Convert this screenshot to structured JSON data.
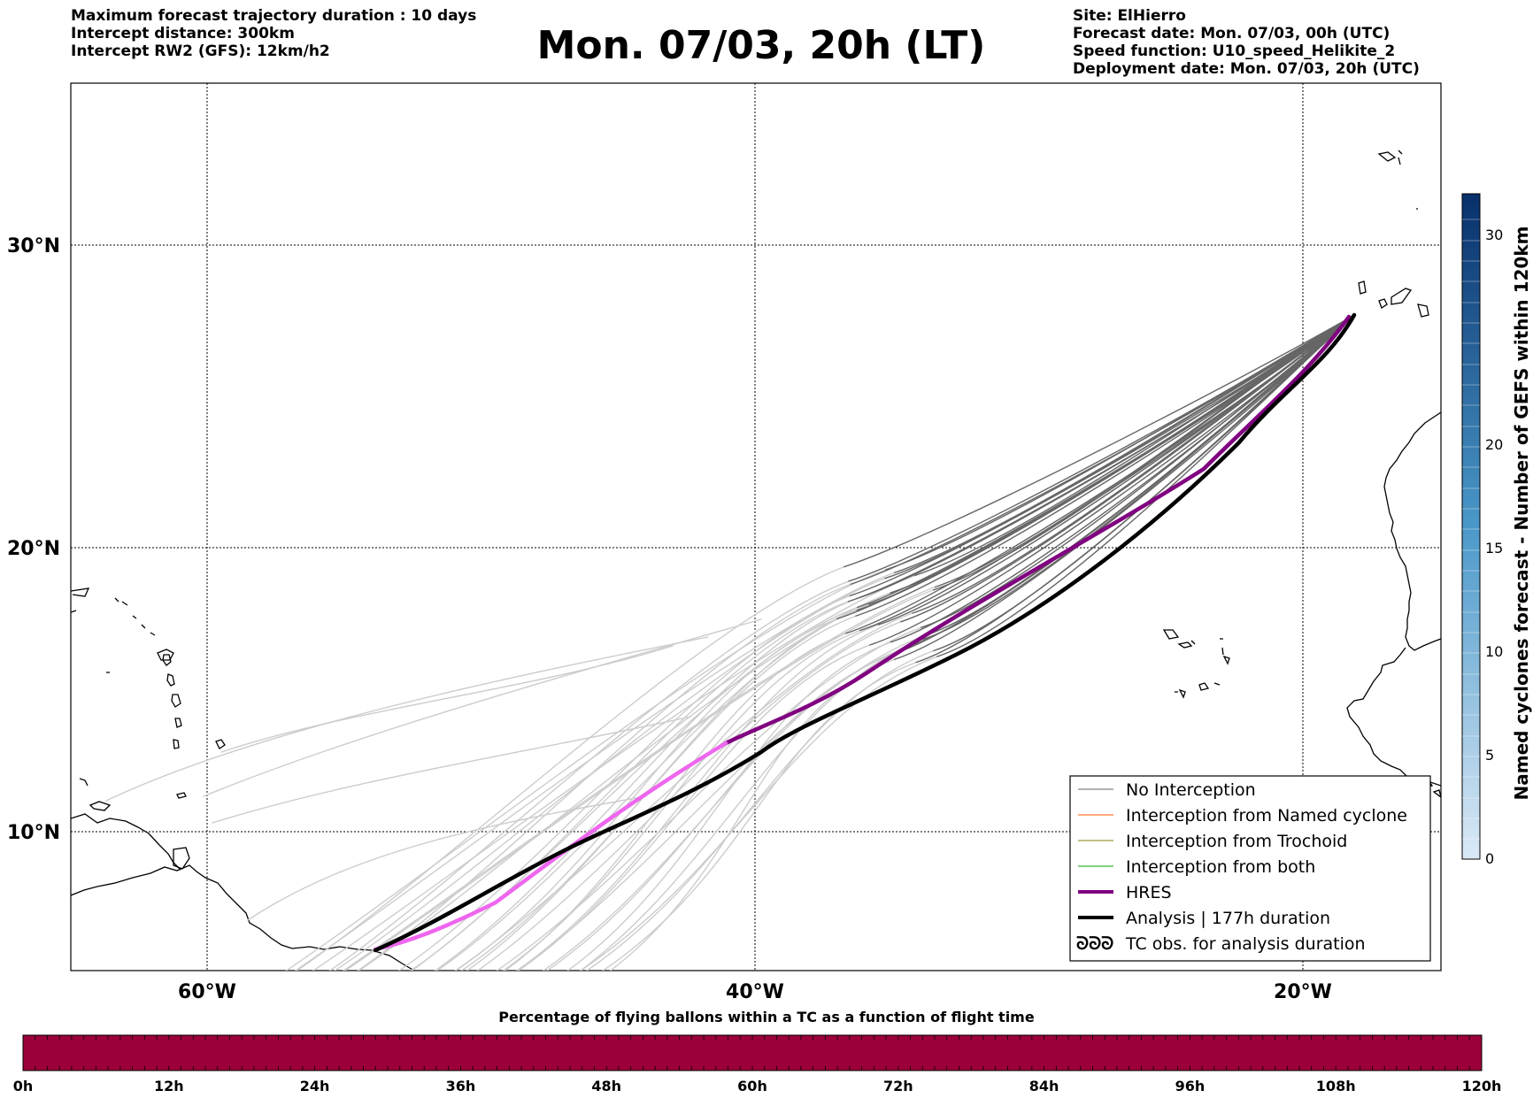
{
  "header": {
    "left": [
      "Maximum forecast trajectory duration : 10 days",
      "Intercept distance: 300km",
      "Intercept RW2 (GFS):  12km/h2"
    ],
    "title": "Mon. 07/03, 20h (LT)",
    "right": [
      "Site: ElHierro",
      "Forecast date: Mon. 07/03, 00h (UTC)",
      "Speed function: U10_speed_Helikite_2",
      "Deployment date: Mon. 07/03, 20h (UTC)"
    ]
  },
  "map": {
    "lat_labels": [
      "30°N",
      "20°N",
      "10°N"
    ],
    "lon_labels": [
      "60°W",
      "40°W",
      "20°W"
    ],
    "legend": [
      {
        "label": "No Interception",
        "color": "#666666"
      },
      {
        "label": "Interception from Named cyclone",
        "color": "#ff5500"
      },
      {
        "label": "Interception from Trochoid",
        "color": "#808000"
      },
      {
        "label": "Interception from both",
        "color": "#00a000"
      },
      {
        "label": "HRES",
        "color": "#800080"
      },
      {
        "label": "Analysis | 177h duration",
        "color": "#000000"
      },
      {
        "label": "TC obs. for analysis duration",
        "color": "#000000"
      }
    ],
    "colors": {
      "ensemble": "#666666",
      "ensemble_faded": "#cccccc",
      "hres": "#800080",
      "hres_early": "#ee66ee",
      "analysis": "#000000"
    }
  },
  "colorbar": {
    "label": "Named cyclones forecast - Number of GEFS within 120km",
    "ticks": [
      "0",
      "5",
      "10",
      "15",
      "20",
      "30"
    ]
  },
  "bottom": {
    "title": "Percentage of flying ballons within a TC as a function of flight time",
    "ticks": [
      "0h",
      "12h",
      "24h",
      "36h",
      "48h",
      "60h",
      "72h",
      "84h",
      "96h",
      "108h",
      "120h"
    ],
    "bar_color": "#9b003a"
  }
}
